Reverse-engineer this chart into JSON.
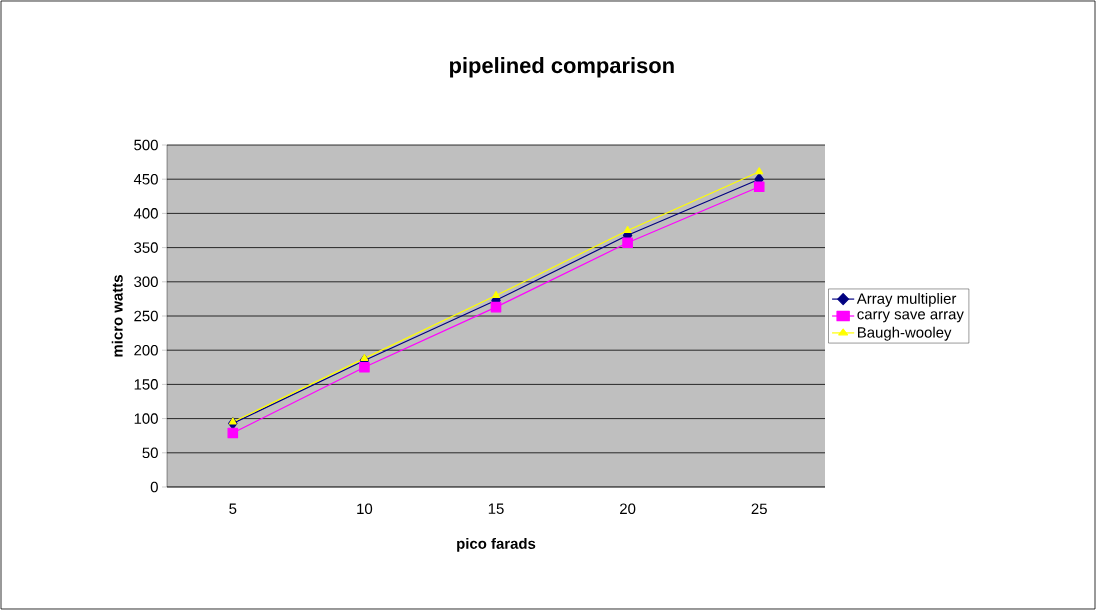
{
  "chart_data": {
    "type": "line",
    "title": "pipelined comparison",
    "xlabel": "pico farads",
    "ylabel": "micro watts",
    "categories": [
      "5",
      "10",
      "15",
      "20",
      "25"
    ],
    "series": [
      {
        "name": "Array multiplier",
        "color": "#000080",
        "marker": "diamond",
        "values": [
          93,
          185,
          273,
          368,
          450
        ]
      },
      {
        "name": "carry save array",
        "color": "#ff00ff",
        "marker": "square",
        "values": [
          79,
          175,
          263,
          357,
          439
        ]
      },
      {
        "name": "Baugh-wooley",
        "color": "#ffff00",
        "marker": "triangle",
        "values": [
          95,
          188,
          280,
          375,
          461
        ]
      }
    ],
    "ylim": [
      0,
      500
    ],
    "yticks": [
      0,
      50,
      100,
      150,
      200,
      250,
      300,
      350,
      400,
      450,
      500
    ],
    "grid": "y",
    "legend": "right"
  }
}
